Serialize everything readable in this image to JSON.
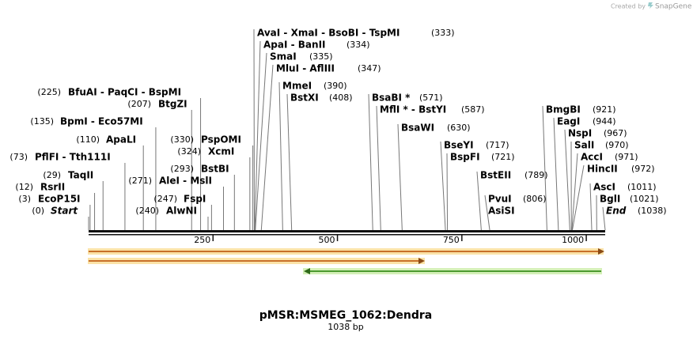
{
  "header": {
    "credit": "Created by",
    "brand": "SnapGene"
  },
  "map": {
    "title": "pMSR:MSMEG_1062:Dendra",
    "length": "1038 bp",
    "ticks": [
      250,
      500,
      750,
      1000
    ],
    "sites": [
      {
        "names": "Start",
        "pos": {
          "value": 0,
          "label": "(0)"
        }
      },
      {
        "names": "EcoP15I",
        "pos": {
          "value": 3,
          "label": "(3)"
        }
      },
      {
        "names": "RsrII",
        "pos": {
          "value": 12,
          "label": "(12)"
        }
      },
      {
        "names": "TaqII",
        "pos": {
          "value": 29,
          "label": "(29)"
        }
      },
      {
        "names": "PflFI  -  Tth111I",
        "pos": {
          "value": 73,
          "label": "(73)"
        }
      },
      {
        "names": "ApaLI",
        "pos": {
          "value": 110,
          "label": "(110)"
        }
      },
      {
        "names": "BpmI  -  Eco57MI",
        "pos": {
          "value": 135,
          "label": "(135)"
        }
      },
      {
        "names": "BtgZI",
        "pos": {
          "value": 207,
          "label": "(207)"
        }
      },
      {
        "names": "BfuAI  -  PaqCI  -  BspMI",
        "pos": {
          "value": 225,
          "label": "(225)"
        }
      },
      {
        "names": "AlwNI",
        "pos": {
          "value": 240,
          "label": "(240)"
        }
      },
      {
        "names": "FspI",
        "pos": {
          "value": 247,
          "label": "(247)"
        }
      },
      {
        "names": "AleI  -  MslI",
        "pos": {
          "value": 271,
          "label": "(271)"
        }
      },
      {
        "names": "BstBI",
        "pos": {
          "value": 293,
          "label": "(293)"
        }
      },
      {
        "names": "XcmI",
        "pos": {
          "value": 324,
          "label": "(324)"
        }
      },
      {
        "names": "PspOMI",
        "pos": {
          "value": 330,
          "label": "(330)"
        }
      },
      {
        "names": "AvaI  -  XmaI  -  BsoBI  -  TspMI",
        "pos": {
          "value": 333,
          "label": "(333)"
        }
      },
      {
        "names": "ApaI  -  BanII",
        "pos": {
          "value": 334,
          "label": "(334)"
        }
      },
      {
        "names": "SmaI",
        "pos": {
          "value": 335,
          "label": "(335)"
        }
      },
      {
        "names": "MluI  -  AflIII",
        "pos": {
          "value": 347,
          "label": "(347)"
        }
      },
      {
        "names": "MmeI",
        "pos": {
          "value": 390,
          "label": "(390)"
        }
      },
      {
        "names": "BstXI",
        "pos": {
          "value": 408,
          "label": "(408)"
        }
      },
      {
        "names": "BsaBI *",
        "pos": {
          "value": 571,
          "label": "(571)"
        }
      },
      {
        "names": "MflI *  -  BstYI",
        "pos": {
          "value": 587,
          "label": "(587)"
        }
      },
      {
        "names": "BsaWI",
        "pos": {
          "value": 630,
          "label": "(630)"
        }
      },
      {
        "names": "BseYI",
        "pos": {
          "value": 717,
          "label": "(717)"
        }
      },
      {
        "names": "BspFI",
        "pos": {
          "value": 721,
          "label": "(721)"
        }
      },
      {
        "names": "BstEII",
        "pos": {
          "value": 789,
          "label": "(789)"
        }
      },
      {
        "names": "PvuI",
        "pos": {
          "value": 806,
          "label": "(806)"
        }
      },
      {
        "names": "AsiSI"
      },
      {
        "names": "BmgBI",
        "pos": {
          "value": 921,
          "label": "(921)"
        }
      },
      {
        "names": "EagI",
        "pos": {
          "value": 944,
          "label": "(944)"
        }
      },
      {
        "names": "NspI",
        "pos": {
          "value": 967,
          "label": "(967)"
        }
      },
      {
        "names": "SalI",
        "pos": {
          "value": 970,
          "label": "(970)"
        }
      },
      {
        "names": "AccI",
        "pos": {
          "value": 971,
          "label": "(971)"
        }
      },
      {
        "names": "HincII",
        "pos": {
          "value": 972,
          "label": "(972)"
        }
      },
      {
        "names": "AscI",
        "pos": {
          "value": 1011,
          "label": "(1011)"
        }
      },
      {
        "names": "BglI",
        "pos": {
          "value": 1021,
          "label": "(1021)"
        }
      },
      {
        "names": "End",
        "pos": {
          "value": 1038,
          "label": "(1038)"
        }
      }
    ]
  }
}
